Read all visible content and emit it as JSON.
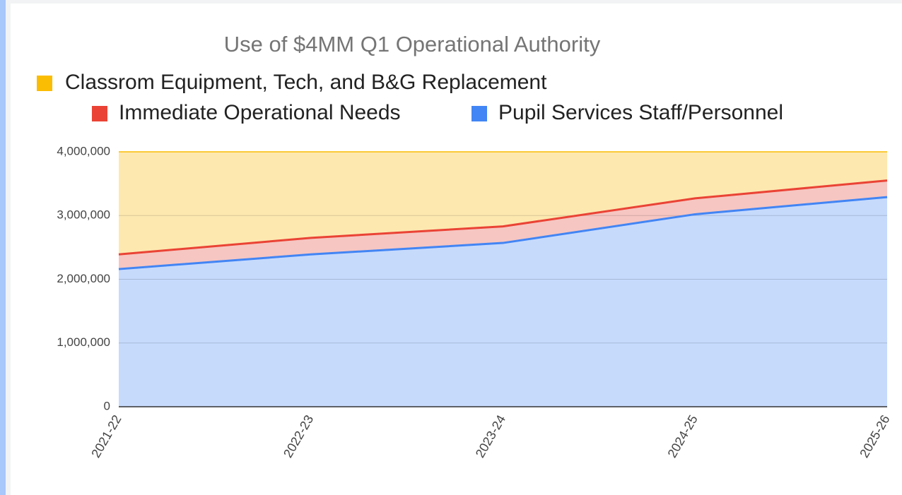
{
  "chart_data": {
    "type": "stacked-area",
    "title": "Use of $4MM Q1 Operational Authority",
    "categories": [
      "2021-22",
      "2022-23",
      "2023-24",
      "2024-25",
      "2025-26"
    ],
    "series": [
      {
        "name": "Classrom Equipment, Tech, and B&G Replacement",
        "color": "#fbbc04",
        "values": [
          1610000,
          1350000,
          1170000,
          730000,
          450000
        ]
      },
      {
        "name": "Immediate Operational Needs",
        "color": "#ea4335",
        "values": [
          230000,
          260000,
          260000,
          250000,
          260000
        ]
      },
      {
        "name": "Pupil Services Staff/Personnel",
        "color": "#4285f4",
        "values": [
          2160000,
          2390000,
          2570000,
          3020000,
          3290000
        ]
      }
    ],
    "ylim": [
      0,
      4000000
    ],
    "yticks": [
      0,
      {
        "value": 1000000,
        "label": "1,000,000"
      },
      {
        "value": 2000000,
        "label": "2,000,000"
      },
      {
        "value": 3000000,
        "label": "3,000,000"
      },
      {
        "value": 4000000,
        "label": "4,000,000"
      }
    ],
    "grid": true
  }
}
